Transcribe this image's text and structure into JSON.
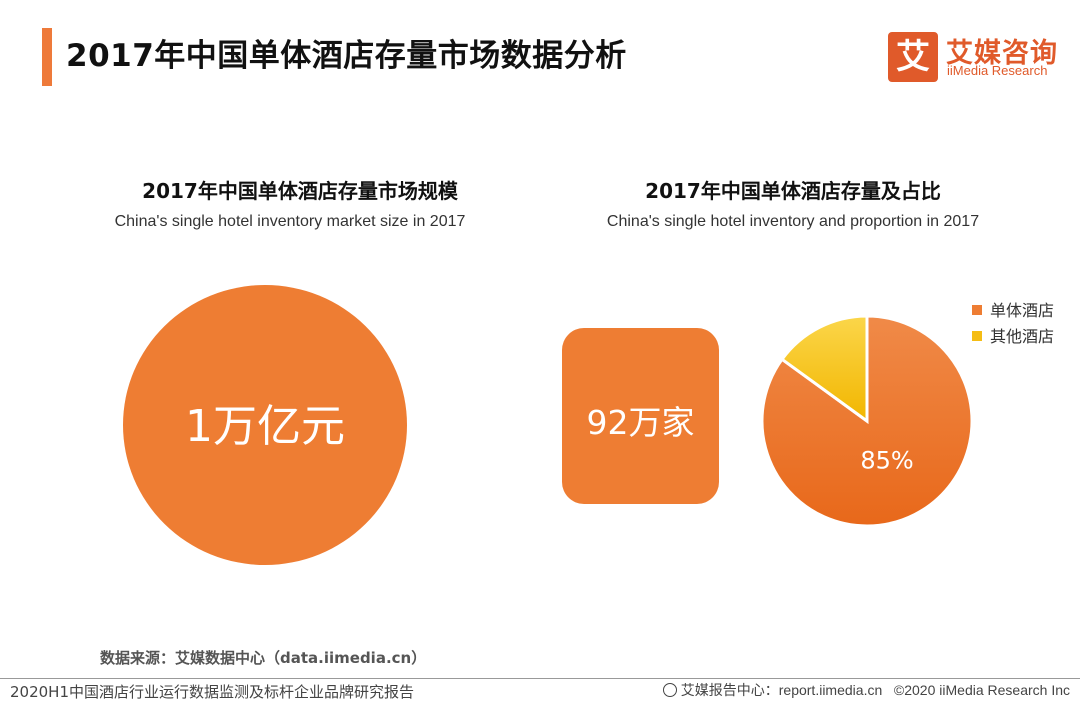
{
  "header": {
    "title": "2017年中国单体酒店存量市场数据分析",
    "logo_mark": "艾",
    "logo_cn": "艾媒咨询",
    "logo_en": "iiMedia Research"
  },
  "left_panel": {
    "title_cn": "2017年中国单体酒店存量市场规模",
    "title_en": "China's single hotel inventory market size in  2017",
    "value": "1万亿元"
  },
  "right_panel": {
    "title_cn": "2017年中国单体酒店存量及占比",
    "title_en": "China's single hotel inventory and proportion in 2017",
    "count": "92万家"
  },
  "chart_data": {
    "type": "pie",
    "slices": [
      {
        "name": "单体酒店",
        "value": 85,
        "label": "85%",
        "color": "#ee7d33"
      },
      {
        "name": "其他酒店",
        "value": 15,
        "label": "",
        "color": "#f5bd14"
      }
    ],
    "legend_position": "top-right"
  },
  "footer": {
    "source": "数据来源：艾媒数据中心（data.iimedia.cn）",
    "report_name": "2020H1中国酒店行业运行数据监测及标杆企业品牌研究报告",
    "report_center": "艾媒报告中心：report.iimedia.cn",
    "copyright": "©2020  iiMedia Research  Inc"
  }
}
